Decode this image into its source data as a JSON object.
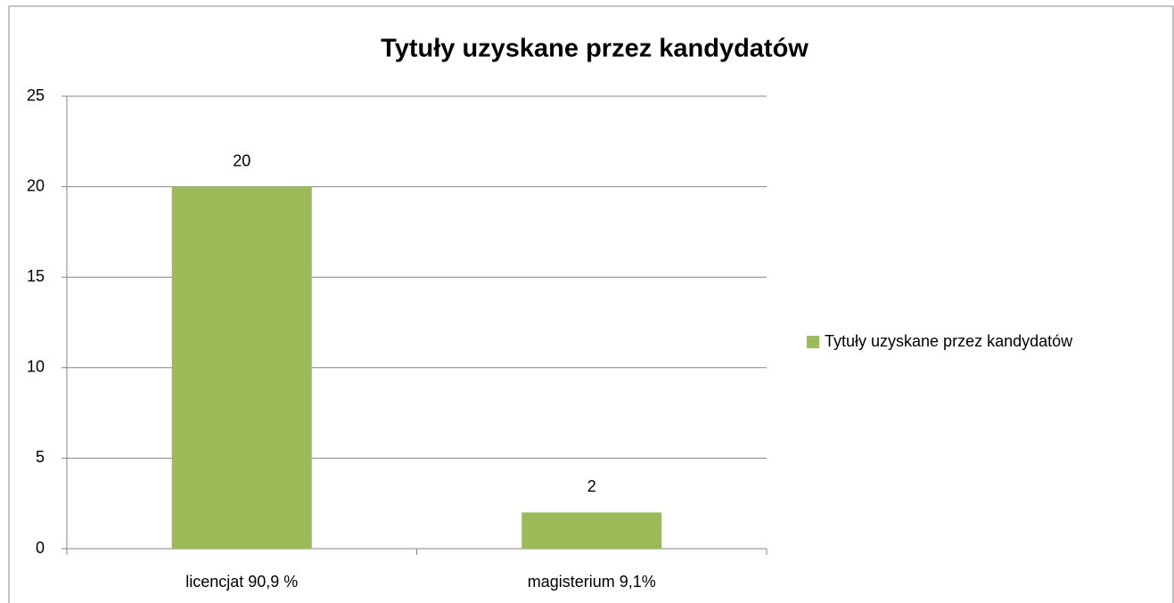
{
  "chart_data": {
    "type": "bar",
    "title": "Tytuły uzyskane przez kandydatów",
    "categories": [
      "licencjat 90,9 %",
      "magisterium 9,1%"
    ],
    "series": [
      {
        "name": "Tytuły uzyskane przez kandydatów",
        "color": "#9bbb59",
        "values": [
          20,
          2
        ]
      }
    ],
    "ylim": [
      0,
      25
    ],
    "yticks": [
      0,
      5,
      10,
      15,
      20,
      25
    ],
    "grid": true,
    "legend": "right"
  }
}
